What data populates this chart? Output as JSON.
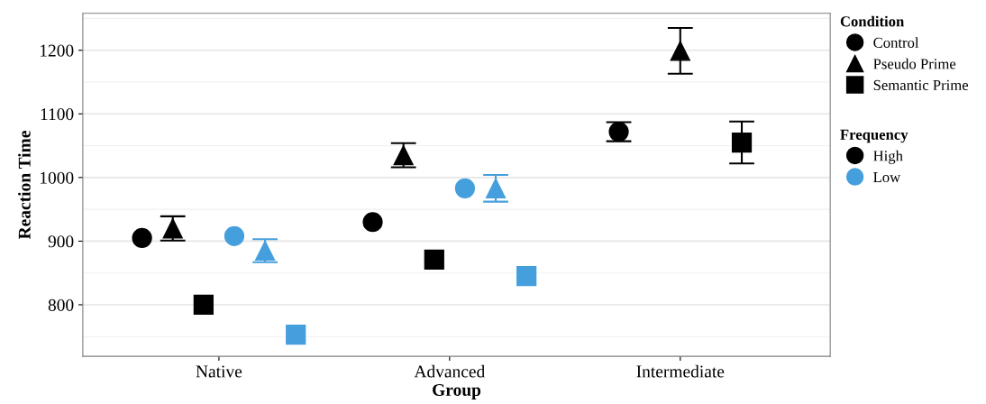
{
  "chart_data": {
    "type": "scatter",
    "xlabel": "Group",
    "ylabel": "Reaction Time",
    "legend_title": "Condition",
    "categories": [
      "Native",
      "Advanced",
      "Intermediate"
    ],
    "series": [
      {
        "name": "Control",
        "color": "#000000",
        "marker": "circle",
        "values": [
          905,
          930,
          1072
        ],
        "errors": [
          null,
          null,
          15
        ]
      },
      {
        "name": "Pseudo Prime",
        "color": "#000000",
        "marker": "triangle",
        "values": [
          920,
          1035,
          1199
        ],
        "errors": [
          19,
          19,
          36
        ]
      },
      {
        "name": "Semantic Prime",
        "color": "#000000",
        "marker": "square",
        "values": [
          800,
          871,
          1055
        ],
        "errors": [
          null,
          null,
          33
        ]
      },
      {
        "color": "#469fdd",
        "marker": "circle",
        "values": [
          908,
          983,
          null
        ],
        "errors": [
          null,
          null,
          null
        ]
      },
      {
        "color": "#469fdd",
        "marker": "triangle",
        "values": [
          885,
          983,
          null
        ],
        "errors": [
          18,
          21,
          null
        ]
      },
      {
        "color": "#469fdd",
        "marker": "square",
        "values": [
          753,
          845,
          null
        ],
        "errors": [
          null,
          null,
          null
        ]
      }
    ],
    "annotations": [
      "Frequency",
      "High",
      "Low"
    ],
    "ylim": [
      719,
      1258
    ],
    "yticks": [
      800,
      900,
      1000,
      1100,
      1200
    ],
    "grid": "y",
    "legend": "right"
  }
}
